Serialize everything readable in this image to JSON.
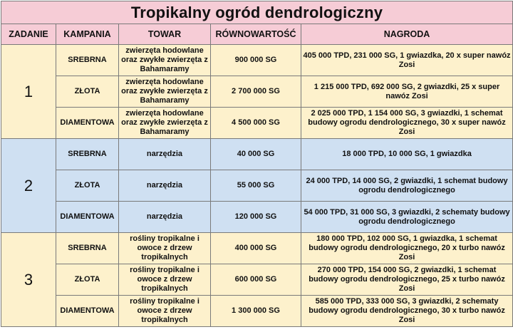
{
  "title": "Tropikalny ogród dendrologiczny",
  "headers": {
    "task": "ZADANIE",
    "campaign": "KAMPANIA",
    "goods": "TOWAR",
    "equivalent": "RÓWNOWARTOŚĆ",
    "reward": "NAGRODA"
  },
  "colors": {
    "header_bg": "#f6ccd6",
    "group_1_bg": "#fdf1cc",
    "group_2_bg": "#cfe0f2",
    "group_3_bg": "#fdf1cc",
    "border": "#7a7a7a"
  },
  "tasks": [
    {
      "number": "1",
      "rows": [
        {
          "campaign": "SREBRNA",
          "goods": "zwierzęta hodowlane oraz zwykłe zwierzęta z Bahamaramy",
          "equivalent": "900 000 SG",
          "reward": "405 000 TPD, 231 000 SG, 1 gwiazdka, 20 x super nawóz Zosi"
        },
        {
          "campaign": "ZŁOTA",
          "goods": "zwierzęta hodowlane oraz zwykłe zwierzęta z Bahamaramy",
          "equivalent": "2 700 000 SG",
          "reward": "1 215 000 TPD, 692 000 SG, 2 gwiazdki, 25 x super nawóz Zosi"
        },
        {
          "campaign": "DIAMENTOWA",
          "goods": "zwierzęta hodowlane oraz zwykłe zwierzęta z Bahamaramy",
          "equivalent": "4 500 000 SG",
          "reward": "2 025 000 TPD, 1 154 000 SG, 3 gwiazdki, 1 schemat budowy ogrodu dendrologicznego, 30 x super nawóz Zosi"
        }
      ]
    },
    {
      "number": "2",
      "rows": [
        {
          "campaign": "SREBRNA",
          "goods": "narzędzia",
          "equivalent": "40 000 SG",
          "reward": "18 000 TPD, 10 000 SG, 1 gwiazdka"
        },
        {
          "campaign": "ZŁOTA",
          "goods": "narzędzia",
          "equivalent": "55 000 SG",
          "reward": "24 000 TPD, 14 000 SG, 2 gwiazdki, 1 schemat budowy ogrodu dendrologicznego"
        },
        {
          "campaign": "DIAMENTOWA",
          "goods": "narzędzia",
          "equivalent": "120 000 SG",
          "reward": "54 000 TPD, 31 000 SG, 3 gwiazdki, 2 schematy budowy ogrodu dendrologicznego"
        }
      ]
    },
    {
      "number": "3",
      "rows": [
        {
          "campaign": "SREBRNA",
          "goods": "rośliny tropikalne i owoce z drzew tropikalnych",
          "equivalent": "400 000 SG",
          "reward": "180 000 TPD, 102 000 SG, 1 gwiazdka, 1 schemat budowy ogrodu dendrologicznego, 20 x turbo nawóz Zosi"
        },
        {
          "campaign": "ZŁOTA",
          "goods": "rośliny tropikalne i owoce z drzew tropikalnych",
          "equivalent": "600 000 SG",
          "reward": "270 000 TPD, 154 000 SG, 2 gwiazdki, 1 schemat budowy ogrodu dendrologicznego, 25 x turbo nawóz Zosi"
        },
        {
          "campaign": "DIAMENTOWA",
          "goods": "rośliny tropikalne i owoce z drzew tropikalnych",
          "equivalent": "1 300 000 SG",
          "reward": "585 000 TPD, 333 000 SG, 3 gwiazdki, 2 schematy budowy ogrodu dendrologicznego, 30 x turbo nawóz Zosi"
        }
      ]
    }
  ]
}
